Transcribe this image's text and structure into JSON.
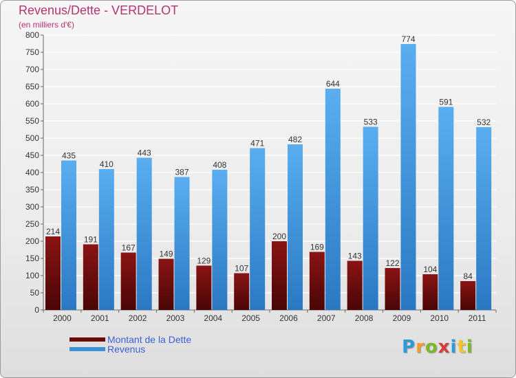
{
  "chart_data": {
    "type": "bar",
    "title": "Revenus/Dette - VERDELOT",
    "subtitle": "(en milliers d'€)",
    "categories": [
      "2000",
      "2001",
      "2002",
      "2003",
      "2004",
      "2005",
      "2006",
      "2007",
      "2008",
      "2009",
      "2010",
      "2011"
    ],
    "series": [
      {
        "name": "Montant de la Dette",
        "color": "#6b0a0a",
        "values": [
          214,
          191,
          167,
          149,
          129,
          107,
          200,
          169,
          143,
          122,
          104,
          84
        ]
      },
      {
        "name": "Revenus",
        "color": "#3d93db",
        "values": [
          435,
          410,
          443,
          387,
          408,
          471,
          482,
          644,
          533,
          774,
          591,
          532
        ]
      }
    ],
    "ylim": [
      0,
      800
    ],
    "yticks": [
      0,
      50,
      100,
      150,
      200,
      250,
      300,
      350,
      400,
      450,
      500,
      550,
      600,
      650,
      700,
      750,
      800
    ],
    "grid": true,
    "legend_position": "bottom-left"
  },
  "legend": {
    "debt_label": "Montant de la Dette",
    "revenue_label": "Revenus"
  },
  "logo": {
    "text": "Proxiti"
  }
}
